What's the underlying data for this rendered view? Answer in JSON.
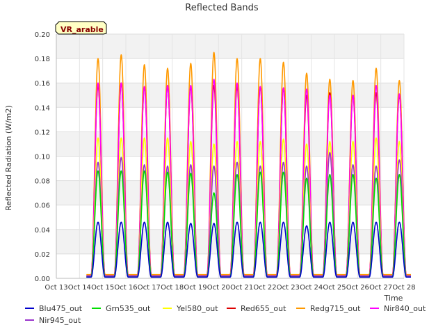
{
  "chart_data": {
    "type": "line",
    "title": "Reflected Bands",
    "xlabel": "Time",
    "ylabel": "Reflected Radiation (W/m2)",
    "ylim": [
      0,
      0.2
    ],
    "yticks": [
      "0.00",
      "0.02",
      "0.04",
      "0.06",
      "0.08",
      "0.10",
      "0.12",
      "0.14",
      "0.16",
      "0.18",
      "0.20"
    ],
    "xlim": [
      13,
      28
    ],
    "xticks": [
      "Oct 13",
      "Oct 14",
      "Oct 15",
      "Oct 16",
      "Oct 17",
      "Oct 18",
      "Oct 19",
      "Oct 20",
      "Oct 21",
      "Oct 22",
      "Oct 23",
      "Oct 24",
      "Oct 25",
      "Oct 26",
      "Oct 27",
      "Oct 28"
    ],
    "grid": true,
    "legend_position": "bottom",
    "badge": "VR_arable",
    "day_centers": [
      14.8,
      15.8,
      16.8,
      17.8,
      18.8,
      19.8,
      20.8,
      21.8,
      22.8,
      23.8,
      24.8,
      25.8,
      26.8,
      27.8
    ],
    "series": [
      {
        "name": "Blu475_out",
        "color": "#0000cc",
        "night": 0.001,
        "peaks": [
          0.046,
          0.046,
          0.046,
          0.046,
          0.045,
          0.045,
          0.046,
          0.046,
          0.046,
          0.043,
          0.046,
          0.046,
          0.046,
          0.046
        ]
      },
      {
        "name": "Grn535_out",
        "color": "#00dd00",
        "night": 0.001,
        "peaks": [
          0.088,
          0.088,
          0.088,
          0.087,
          0.086,
          0.07,
          0.085,
          0.087,
          0.087,
          0.082,
          0.085,
          0.085,
          0.082,
          0.085
        ]
      },
      {
        "name": "Yel580_out",
        "color": "#ffff00",
        "night": 0.001,
        "peaks": [
          0.115,
          0.115,
          0.115,
          0.115,
          0.112,
          0.11,
          0.112,
          0.112,
          0.114,
          0.11,
          0.112,
          0.112,
          0.115,
          0.112
        ]
      },
      {
        "name": "Red655_out",
        "color": "#dd0000",
        "night": 0.002,
        "peaks": [
          0.158,
          0.16,
          0.157,
          0.158,
          0.157,
          0.158,
          0.157,
          0.157,
          0.156,
          0.15,
          0.152,
          0.15,
          0.152,
          0.15
        ]
      },
      {
        "name": "Redg715_out",
        "color": "#ff9900",
        "night": 0.003,
        "peaks": [
          0.18,
          0.183,
          0.175,
          0.172,
          0.176,
          0.185,
          0.18,
          0.18,
          0.177,
          0.168,
          0.163,
          0.162,
          0.172,
          0.162
        ]
      },
      {
        "name": "Nir840_out",
        "color": "#ff00ff",
        "night": 0.002,
        "peaks": [
          0.16,
          0.16,
          0.157,
          0.158,
          0.158,
          0.163,
          0.16,
          0.157,
          0.156,
          0.155,
          0.15,
          0.15,
          0.158,
          0.151
        ]
      },
      {
        "name": "Nir945_out",
        "color": "#9933cc",
        "night": 0.002,
        "peaks": [
          0.095,
          0.099,
          0.093,
          0.092,
          0.093,
          0.092,
          0.095,
          0.092,
          0.095,
          0.092,
          0.103,
          0.093,
          0.092,
          0.097
        ]
      }
    ]
  }
}
